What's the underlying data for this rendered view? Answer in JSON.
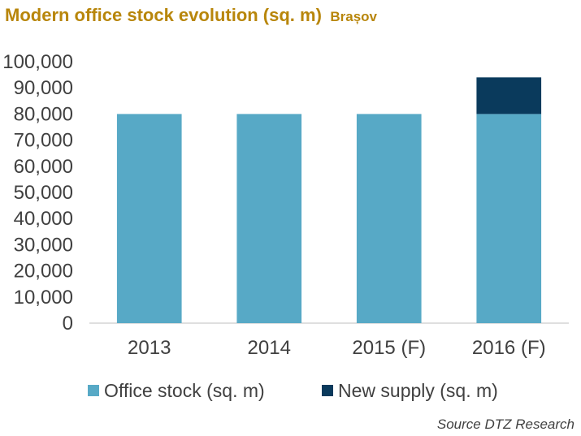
{
  "chart_data": {
    "type": "bar",
    "stacked": true,
    "title": "Modern office stock evolution (sq. m)",
    "subtitle": "Brașov",
    "categories": [
      "2013",
      "2014",
      "2015 (F)",
      "2016 (F)"
    ],
    "series": [
      {
        "name": "Office stock (sq. m)",
        "values": [
          80000,
          80000,
          80000,
          80000
        ],
        "color": "#57a9c6"
      },
      {
        "name": "New supply (sq. m)",
        "values": [
          0,
          0,
          0,
          14000
        ],
        "color": "#0a3a5c"
      }
    ],
    "ylim": [
      0,
      100000
    ],
    "yticks": [
      "0",
      "10,000",
      "20,000",
      "30,000",
      "40,000",
      "50,000",
      "60,000",
      "70,000",
      "80,000",
      "90,000",
      "100,000"
    ],
    "grid": false,
    "legend": "bottom",
    "source": "Source DTZ Research"
  }
}
